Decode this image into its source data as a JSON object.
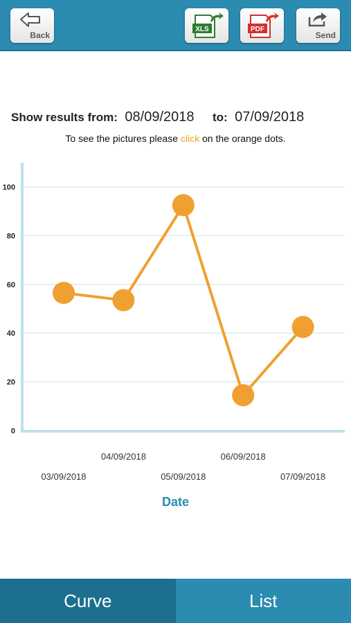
{
  "toolbar": {
    "back_label": "Back",
    "xls_label": "XLS",
    "pdf_label": "PDF",
    "send_label": "Send"
  },
  "filter": {
    "from_label": "Show results from:",
    "from_value": "08/09/2018",
    "to_label": "to:",
    "to_value": "07/09/2018"
  },
  "hint": {
    "before": "To see the pictures please ",
    "click_word": "click",
    "after": " on the orange dots."
  },
  "chart_data": {
    "type": "line",
    "x": [
      "03/09/2018",
      "04/09/2018",
      "05/09/2018",
      "06/09/2018",
      "07/09/2018"
    ],
    "x_positions_days": [
      0,
      1,
      2,
      3,
      4
    ],
    "points": [
      {
        "x": "03/09/2018",
        "y": 56.5
      },
      {
        "x": "04/09/2018",
        "y": 53.5
      },
      {
        "x": "05/09/2018",
        "y": 92.5
      },
      {
        "x": "06/09/2018",
        "y": 14.5
      },
      {
        "x": "07/09/2018",
        "y": 42.5
      }
    ],
    "xlabel": "Date",
    "ylabel": "",
    "ylim": [
      0,
      100
    ],
    "yticks": [
      0,
      20,
      40,
      60,
      80,
      100
    ],
    "grid": true,
    "line_color": "#f0a030",
    "axis_color": "#bfe0ea"
  },
  "tabs": {
    "curve_label": "Curve",
    "list_label": "List"
  }
}
